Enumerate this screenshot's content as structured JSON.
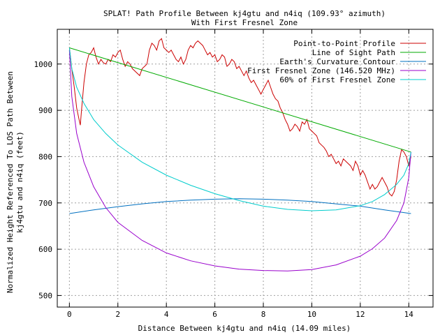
{
  "chart_data": {
    "type": "line",
    "title": "SPLAT! Path Profile Between kj4gtu and n4iq (109.93° azimuth)",
    "subtitle": "With First Fresnel Zone",
    "xlabel": "Distance Between kj4gtu and n4iq (14.09 miles)",
    "ylabel_line1": "Normalized Height Referenced To LOS Path Between",
    "ylabel_line2": "kj4gtu and n4iq (feet)",
    "xlim": [
      -0.5,
      15
    ],
    "ylim": [
      475,
      1075
    ],
    "x_ticks": [
      0,
      2,
      4,
      6,
      8,
      10,
      12,
      14
    ],
    "y_ticks": [
      500,
      600,
      700,
      800,
      900,
      1000
    ],
    "grid": true,
    "legend_position": "top-right",
    "series": [
      {
        "name": "Point-to-Point Profile",
        "color": "#cc0000",
        "points": [
          [
            0.0,
            1035
          ],
          [
            0.1,
            990
          ],
          [
            0.2,
            950
          ],
          [
            0.3,
            905
          ],
          [
            0.4,
            880
          ],
          [
            0.45,
            868
          ],
          [
            0.5,
            900
          ],
          [
            0.6,
            960
          ],
          [
            0.7,
            1000
          ],
          [
            0.8,
            1020
          ],
          [
            0.9,
            1025
          ],
          [
            1.0,
            1035
          ],
          [
            1.1,
            1015
          ],
          [
            1.2,
            1000
          ],
          [
            1.3,
            1010
          ],
          [
            1.4,
            1003
          ],
          [
            1.5,
            1000
          ],
          [
            1.6,
            1010
          ],
          [
            1.7,
            1005
          ],
          [
            1.8,
            1020
          ],
          [
            1.9,
            1015
          ],
          [
            2.0,
            1025
          ],
          [
            2.1,
            1030
          ],
          [
            2.2,
            1010
          ],
          [
            2.3,
            995
          ],
          [
            2.4,
            1005
          ],
          [
            2.5,
            1000
          ],
          [
            2.6,
            990
          ],
          [
            2.7,
            985
          ],
          [
            2.8,
            980
          ],
          [
            2.9,
            975
          ],
          [
            3.0,
            990
          ],
          [
            3.1,
            995
          ],
          [
            3.2,
            1000
          ],
          [
            3.3,
            1030
          ],
          [
            3.4,
            1045
          ],
          [
            3.5,
            1040
          ],
          [
            3.6,
            1030
          ],
          [
            3.7,
            1050
          ],
          [
            3.8,
            1055
          ],
          [
            3.9,
            1035
          ],
          [
            4.0,
            1030
          ],
          [
            4.1,
            1025
          ],
          [
            4.2,
            1030
          ],
          [
            4.3,
            1020
          ],
          [
            4.4,
            1010
          ],
          [
            4.5,
            1005
          ],
          [
            4.6,
            1015
          ],
          [
            4.7,
            1000
          ],
          [
            4.8,
            1010
          ],
          [
            4.9,
            1030
          ],
          [
            5.0,
            1040
          ],
          [
            5.1,
            1035
          ],
          [
            5.2,
            1045
          ],
          [
            5.3,
            1050
          ],
          [
            5.4,
            1045
          ],
          [
            5.5,
            1040
          ],
          [
            5.6,
            1030
          ],
          [
            5.7,
            1020
          ],
          [
            5.8,
            1025
          ],
          [
            5.9,
            1015
          ],
          [
            6.0,
            1020
          ],
          [
            6.1,
            1005
          ],
          [
            6.2,
            1010
          ],
          [
            6.3,
            1020
          ],
          [
            6.4,
            1015
          ],
          [
            6.5,
            995
          ],
          [
            6.6,
            1000
          ],
          [
            6.7,
            1010
          ],
          [
            6.8,
            1005
          ],
          [
            6.9,
            990
          ],
          [
            7.0,
            995
          ],
          [
            7.1,
            985
          ],
          [
            7.2,
            975
          ],
          [
            7.3,
            985
          ],
          [
            7.4,
            970
          ],
          [
            7.5,
            960
          ],
          [
            7.6,
            965
          ],
          [
            7.7,
            955
          ],
          [
            7.8,
            945
          ],
          [
            7.9,
            935
          ],
          [
            8.0,
            945
          ],
          [
            8.1,
            955
          ],
          [
            8.2,
            965
          ],
          [
            8.3,
            950
          ],
          [
            8.4,
            935
          ],
          [
            8.5,
            925
          ],
          [
            8.6,
            920
          ],
          [
            8.7,
            905
          ],
          [
            8.8,
            895
          ],
          [
            8.9,
            880
          ],
          [
            9.0,
            870
          ],
          [
            9.1,
            855
          ],
          [
            9.2,
            860
          ],
          [
            9.3,
            870
          ],
          [
            9.4,
            865
          ],
          [
            9.5,
            855
          ],
          [
            9.6,
            875
          ],
          [
            9.7,
            870
          ],
          [
            9.8,
            880
          ],
          [
            9.9,
            860
          ],
          [
            10.0,
            855
          ],
          [
            10.1,
            850
          ],
          [
            10.2,
            845
          ],
          [
            10.3,
            830
          ],
          [
            10.4,
            825
          ],
          [
            10.5,
            820
          ],
          [
            10.6,
            812
          ],
          [
            10.7,
            800
          ],
          [
            10.8,
            805
          ],
          [
            10.9,
            795
          ],
          [
            11.0,
            785
          ],
          [
            11.1,
            790
          ],
          [
            11.2,
            780
          ],
          [
            11.3,
            795
          ],
          [
            11.4,
            790
          ],
          [
            11.5,
            785
          ],
          [
            11.6,
            780
          ],
          [
            11.7,
            770
          ],
          [
            11.8,
            790
          ],
          [
            11.9,
            780
          ],
          [
            12.0,
            760
          ],
          [
            12.1,
            770
          ],
          [
            12.2,
            760
          ],
          [
            12.3,
            745
          ],
          [
            12.4,
            730
          ],
          [
            12.5,
            740
          ],
          [
            12.6,
            730
          ],
          [
            12.7,
            735
          ],
          [
            12.8,
            745
          ],
          [
            12.9,
            755
          ],
          [
            13.0,
            745
          ],
          [
            13.1,
            735
          ],
          [
            13.2,
            720
          ],
          [
            13.3,
            715
          ],
          [
            13.4,
            725
          ],
          [
            13.5,
            750
          ],
          [
            13.6,
            790
          ],
          [
            13.7,
            815
          ],
          [
            13.8,
            810
          ],
          [
            13.9,
            800
          ],
          [
            14.0,
            780
          ],
          [
            14.09,
            800
          ]
        ]
      },
      {
        "name": "Line of Sight Path",
        "color": "#00aa00",
        "points": [
          [
            0.0,
            1035
          ],
          [
            14.09,
            810
          ]
        ]
      },
      {
        "name": "Earth's Curvature Contour",
        "color": "#0070c0",
        "points": [
          [
            0.0,
            677
          ],
          [
            1.0,
            685
          ],
          [
            2.0,
            692
          ],
          [
            3.0,
            698
          ],
          [
            4.0,
            703
          ],
          [
            5.0,
            706
          ],
          [
            6.0,
            708
          ],
          [
            7.0,
            709
          ],
          [
            8.0,
            708
          ],
          [
            9.0,
            706
          ],
          [
            10.0,
            703
          ],
          [
            11.0,
            698
          ],
          [
            12.0,
            693
          ],
          [
            13.0,
            685
          ],
          [
            14.09,
            677
          ]
        ]
      },
      {
        "name": "First Fresnel Zone (146.520 MHz)",
        "color": "#9900cc",
        "points": [
          [
            0.0,
            1030
          ],
          [
            0.1,
            930
          ],
          [
            0.3,
            850
          ],
          [
            0.6,
            788
          ],
          [
            1.0,
            735
          ],
          [
            1.5,
            690
          ],
          [
            2.0,
            658
          ],
          [
            3.0,
            619
          ],
          [
            4.0,
            592
          ],
          [
            5.0,
            575
          ],
          [
            6.0,
            564
          ],
          [
            7.0,
            557
          ],
          [
            8.0,
            554
          ],
          [
            9.0,
            553
          ],
          [
            10.0,
            556
          ],
          [
            11.0,
            566
          ],
          [
            12.0,
            585
          ],
          [
            12.5,
            601
          ],
          [
            13.0,
            624
          ],
          [
            13.5,
            662
          ],
          [
            13.8,
            700
          ],
          [
            14.0,
            755
          ],
          [
            14.09,
            810
          ]
        ]
      },
      {
        "name": "60% of First Fresnel Zone",
        "color": "#00cccc",
        "points": [
          [
            0.0,
            1035
          ],
          [
            0.1,
            990
          ],
          [
            0.3,
            950
          ],
          [
            0.6,
            915
          ],
          [
            1.0,
            880
          ],
          [
            1.5,
            850
          ],
          [
            2.0,
            825
          ],
          [
            3.0,
            788
          ],
          [
            4.0,
            760
          ],
          [
            5.0,
            738
          ],
          [
            6.0,
            720
          ],
          [
            7.0,
            705
          ],
          [
            8.0,
            693
          ],
          [
            9.0,
            686
          ],
          [
            10.0,
            683
          ],
          [
            11.0,
            685
          ],
          [
            12.0,
            694
          ],
          [
            12.5,
            703
          ],
          [
            13.0,
            718
          ],
          [
            13.5,
            740
          ],
          [
            13.8,
            760
          ],
          [
            14.0,
            785
          ],
          [
            14.09,
            810
          ]
        ]
      }
    ]
  }
}
